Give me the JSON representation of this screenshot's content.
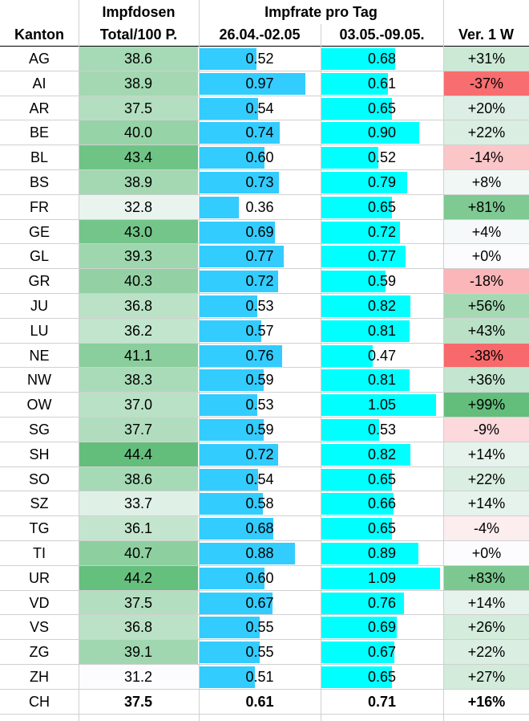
{
  "chart_data": {
    "type": "table",
    "headers": {
      "canton": "Kanton",
      "doses_top": "Impfdosen",
      "doses_bottom": "Total/100 P.",
      "rate_group": "Impfrate pro Tag",
      "period1": "26.04.-02.05",
      "period2": "03.05.-09.05.",
      "change": "Ver. 1 W"
    },
    "rows": [
      {
        "canton": "AG",
        "doses": "38.6",
        "rate1": "0.52",
        "rate2": "0.68",
        "change": "+31%"
      },
      {
        "canton": "AI",
        "doses": "38.9",
        "rate1": "0.97",
        "rate2": "0.61",
        "change": "-37%"
      },
      {
        "canton": "AR",
        "doses": "37.5",
        "rate1": "0.54",
        "rate2": "0.65",
        "change": "+20%"
      },
      {
        "canton": "BE",
        "doses": "40.0",
        "rate1": "0.74",
        "rate2": "0.90",
        "change": "+22%"
      },
      {
        "canton": "BL",
        "doses": "43.4",
        "rate1": "0.60",
        "rate2": "0.52",
        "change": "-14%"
      },
      {
        "canton": "BS",
        "doses": "38.9",
        "rate1": "0.73",
        "rate2": "0.79",
        "change": "+8%"
      },
      {
        "canton": "FR",
        "doses": "32.8",
        "rate1": "0.36",
        "rate2": "0.65",
        "change": "+81%"
      },
      {
        "canton": "GE",
        "doses": "43.0",
        "rate1": "0.69",
        "rate2": "0.72",
        "change": "+4%"
      },
      {
        "canton": "GL",
        "doses": "39.3",
        "rate1": "0.77",
        "rate2": "0.77",
        "change": "+0%"
      },
      {
        "canton": "GR",
        "doses": "40.3",
        "rate1": "0.72",
        "rate2": "0.59",
        "change": "-18%"
      },
      {
        "canton": "JU",
        "doses": "36.8",
        "rate1": "0.53",
        "rate2": "0.82",
        "change": "+56%"
      },
      {
        "canton": "LU",
        "doses": "36.2",
        "rate1": "0.57",
        "rate2": "0.81",
        "change": "+43%"
      },
      {
        "canton": "NE",
        "doses": "41.1",
        "rate1": "0.76",
        "rate2": "0.47",
        "change": "-38%"
      },
      {
        "canton": "NW",
        "doses": "38.3",
        "rate1": "0.59",
        "rate2": "0.81",
        "change": "+36%"
      },
      {
        "canton": "OW",
        "doses": "37.0",
        "rate1": "0.53",
        "rate2": "1.05",
        "change": "+99%"
      },
      {
        "canton": "SG",
        "doses": "37.7",
        "rate1": "0.59",
        "rate2": "0.53",
        "change": "-9%"
      },
      {
        "canton": "SH",
        "doses": "44.4",
        "rate1": "0.72",
        "rate2": "0.82",
        "change": "+14%"
      },
      {
        "canton": "SO",
        "doses": "38.6",
        "rate1": "0.54",
        "rate2": "0.65",
        "change": "+22%"
      },
      {
        "canton": "SZ",
        "doses": "33.7",
        "rate1": "0.58",
        "rate2": "0.66",
        "change": "+14%"
      },
      {
        "canton": "TG",
        "doses": "36.1",
        "rate1": "0.68",
        "rate2": "0.65",
        "change": "-4%"
      },
      {
        "canton": "TI",
        "doses": "40.7",
        "rate1": "0.88",
        "rate2": "0.89",
        "change": "+0%"
      },
      {
        "canton": "UR",
        "doses": "44.2",
        "rate1": "0.60",
        "rate2": "1.09",
        "change": "+83%"
      },
      {
        "canton": "VD",
        "doses": "37.5",
        "rate1": "0.67",
        "rate2": "0.76",
        "change": "+14%"
      },
      {
        "canton": "VS",
        "doses": "36.8",
        "rate1": "0.55",
        "rate2": "0.69",
        "change": "+26%"
      },
      {
        "canton": "ZG",
        "doses": "39.1",
        "rate1": "0.55",
        "rate2": "0.67",
        "change": "+22%"
      },
      {
        "canton": "ZH",
        "doses": "31.2",
        "rate1": "0.51",
        "rate2": "0.65",
        "change": "+27%"
      }
    ],
    "total": {
      "canton": "CH",
      "doses": "37.5",
      "rate1": "0.61",
      "rate2": "0.71",
      "change": "+16%"
    },
    "doses_scale": [
      31.2,
      44.4
    ],
    "rate_scale": [
      0,
      1.12
    ],
    "colors": {
      "doses_high": "#63be7b",
      "doses_low": "#fcfcff",
      "rate1_bar": "#33ccff",
      "rate2_bar": "#00ffff",
      "change_pos": "#63be7b",
      "change_neg": "#f8696b",
      "change_neutral": "#fcfcff"
    }
  }
}
